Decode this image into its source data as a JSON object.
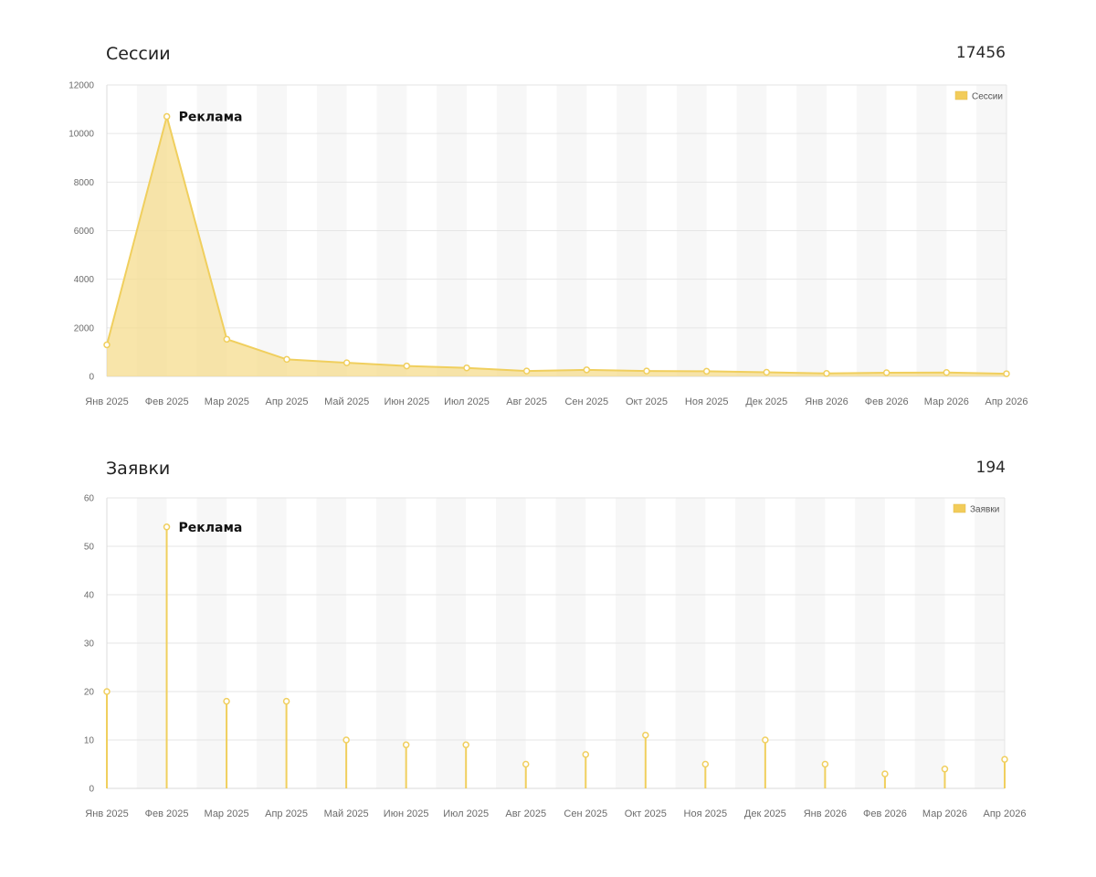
{
  "colors": {
    "line": "#f0cf5e",
    "fill": "#f5dc8e",
    "legend_swatch": "#f2cc5a",
    "grid": "#e6e6e6",
    "band": "#f7f7f7"
  },
  "chart_data": [
    {
      "type": "area",
      "title": "Сессии",
      "total": "17456",
      "categories": [
        "Янв 2025",
        "Фев 2025",
        "Мар 2025",
        "Апр 2025",
        "Май 2025",
        "Июн 2025",
        "Июл 2025",
        "Авг 2025",
        "Сен 2025",
        "Окт 2025",
        "Ноя 2025",
        "Дек 2025",
        "Янв 2026",
        "Фев 2026",
        "Мар 2026",
        "Апр 2026"
      ],
      "series": [
        {
          "name": "Сессии",
          "values": [
            1300,
            10700,
            1530,
            700,
            560,
            430,
            350,
            220,
            270,
            220,
            210,
            170,
            120,
            150,
            160,
            110
          ]
        }
      ],
      "ylim": [
        0,
        12000
      ],
      "yticks": [
        "0",
        "2000",
        "4000",
        "6000",
        "8000",
        "10000",
        "12000"
      ],
      "ytick_values": [
        0,
        2000,
        4000,
        6000,
        8000,
        10000,
        12000
      ],
      "annotation": {
        "label": "Реклама",
        "category_index": 1
      },
      "legend_position": "top-right",
      "grid": true
    },
    {
      "type": "bar",
      "title": "Заявки",
      "total": "194",
      "categories": [
        "Янв 2025",
        "Фев 2025",
        "Мар 2025",
        "Апр 2025",
        "Май 2025",
        "Июн 2025",
        "Июл 2025",
        "Авг 2025",
        "Сен 2025",
        "Окт 2025",
        "Ноя 2025",
        "Дек 2025",
        "Янв 2026",
        "Фев 2026",
        "Мар 2026",
        "Апр 2026"
      ],
      "series": [
        {
          "name": "Заявки",
          "values": [
            20,
            54,
            18,
            18,
            10,
            9,
            9,
            5,
            7,
            11,
            5,
            10,
            5,
            3,
            4,
            6
          ]
        }
      ],
      "ylim": [
        0,
        60
      ],
      "yticks": [
        "0",
        "10",
        "20",
        "30",
        "40",
        "50",
        "60"
      ],
      "ytick_values": [
        0,
        10,
        20,
        30,
        40,
        50,
        60
      ],
      "annotation": {
        "label": "Реклама",
        "category_index": 1
      },
      "legend_position": "top-right",
      "grid": true
    }
  ]
}
